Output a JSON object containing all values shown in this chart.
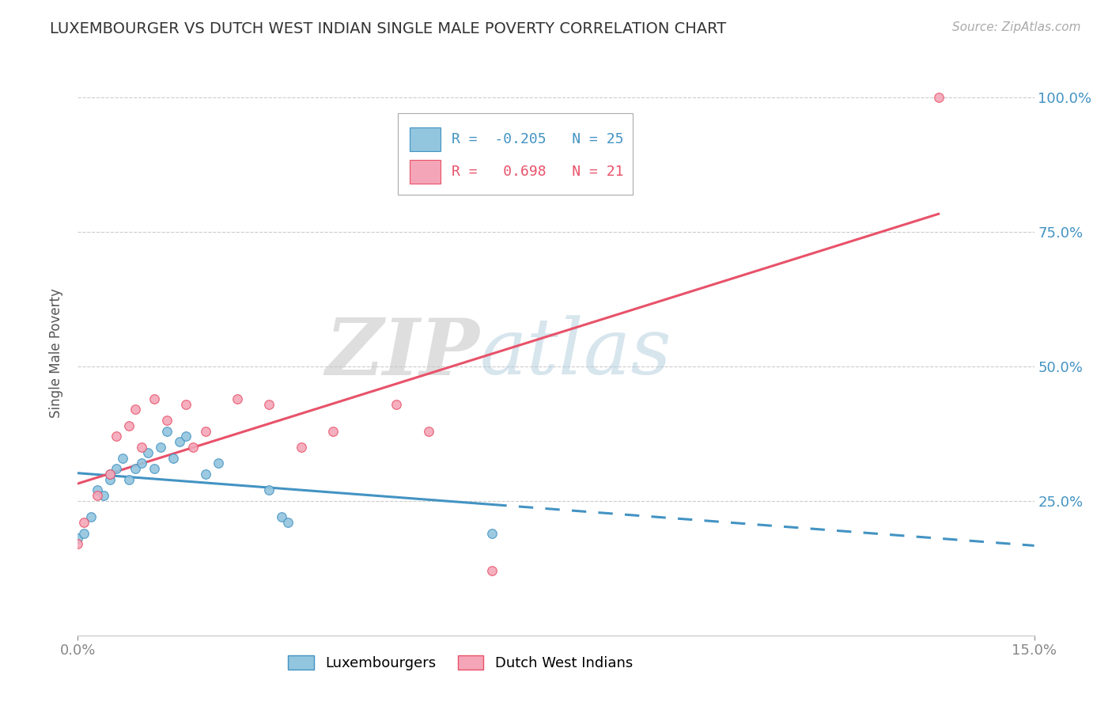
{
  "title": "LUXEMBOURGER VS DUTCH WEST INDIAN SINGLE MALE POVERTY CORRELATION CHART",
  "source": "Source: ZipAtlas.com",
  "ylabel": "Single Male Poverty",
  "xlim": [
    0.0,
    0.15
  ],
  "ylim": [
    0.0,
    1.05
  ],
  "legend_r1": "-0.205",
  "legend_n1": "25",
  "legend_r2": "0.698",
  "legend_n2": "21",
  "color_blue": "#92c5de",
  "color_pink": "#f4a6b8",
  "color_blue_line": "#4393c3",
  "color_pink_line": "#e8526a",
  "watermark_zip": "ZIP",
  "watermark_atlas": "atlas",
  "lux_x": [
    0.0,
    0.001,
    0.002,
    0.003,
    0.004,
    0.005,
    0.005,
    0.006,
    0.007,
    0.008,
    0.009,
    0.01,
    0.011,
    0.012,
    0.013,
    0.014,
    0.015,
    0.016,
    0.017,
    0.02,
    0.022,
    0.03,
    0.032,
    0.033,
    0.065
  ],
  "lux_y": [
    0.18,
    0.19,
    0.22,
    0.27,
    0.26,
    0.29,
    0.3,
    0.31,
    0.33,
    0.29,
    0.31,
    0.32,
    0.34,
    0.31,
    0.35,
    0.38,
    0.33,
    0.36,
    0.37,
    0.3,
    0.32,
    0.27,
    0.22,
    0.21,
    0.19
  ],
  "dwi_x": [
    0.0,
    0.001,
    0.003,
    0.005,
    0.006,
    0.008,
    0.009,
    0.01,
    0.012,
    0.014,
    0.017,
    0.018,
    0.02,
    0.025,
    0.03,
    0.035,
    0.04,
    0.05,
    0.055,
    0.065,
    0.135
  ],
  "dwi_y": [
    0.17,
    0.21,
    0.26,
    0.3,
    0.37,
    0.39,
    0.42,
    0.35,
    0.44,
    0.4,
    0.43,
    0.35,
    0.38,
    0.44,
    0.43,
    0.35,
    0.38,
    0.43,
    0.38,
    0.12,
    1.0
  ],
  "background_color": "#ffffff",
  "grid_color": "#cccccc"
}
